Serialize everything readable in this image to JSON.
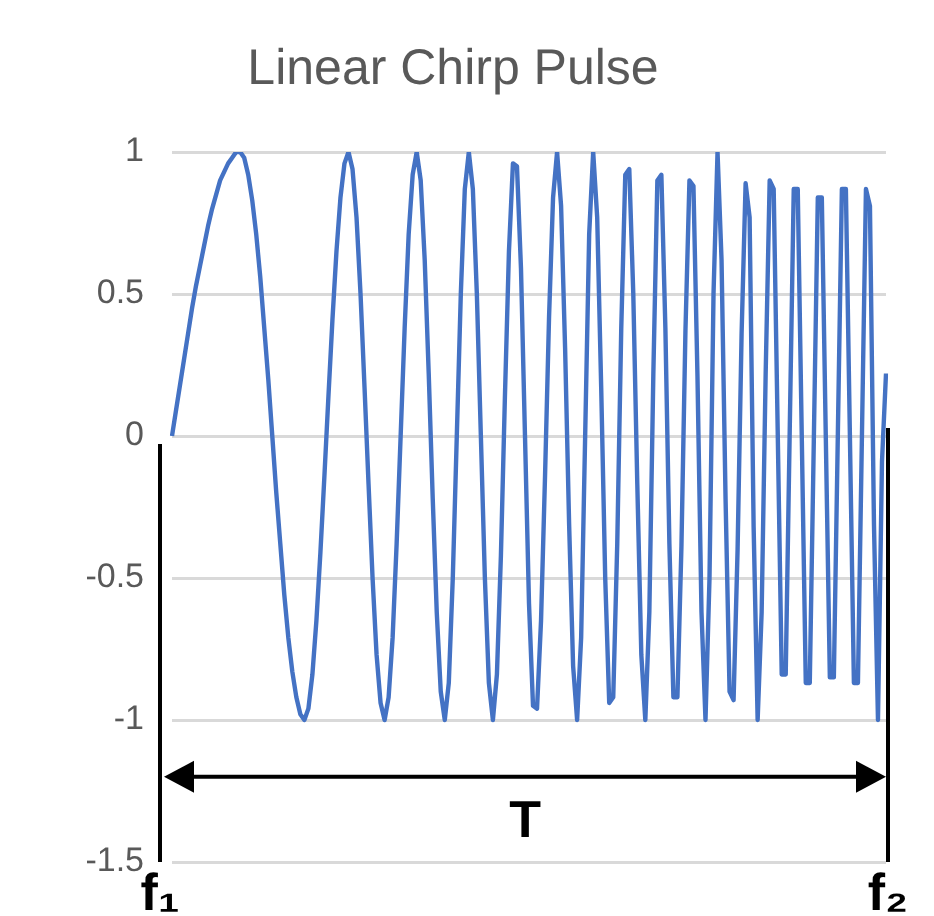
{
  "chart_data": {
    "type": "line",
    "title": "Linear Chirp Pulse",
    "tick_labels": "y",
    "grid": "y",
    "legend": false,
    "marker": "none",
    "line_style": "solid",
    "ylim": [
      -1.5,
      1
    ],
    "yticks": [
      -1.5,
      -1,
      -0.5,
      0,
      0.5,
      1
    ],
    "annotations": [
      "f₁",
      "f₂"
    ],
    "ref_lines": [
      {
        "axis": "y",
        "value": -1.2,
        "label": "T",
        "color": "#000000"
      }
    ],
    "categories": [
      null,
      null,
      null,
      null,
      null,
      null,
      null,
      null,
      null,
      null,
      null,
      null,
      null,
      null,
      null,
      null,
      null,
      null,
      null,
      null,
      null,
      null,
      null,
      null,
      null,
      null,
      null,
      null,
      null,
      null,
      null,
      null,
      null,
      null,
      null,
      null,
      null,
      null,
      null,
      null,
      null,
      null,
      null,
      null,
      null,
      null,
      null,
      null,
      null,
      null,
      null,
      null,
      null,
      null,
      null,
      null,
      null,
      null,
      null,
      null,
      null,
      null,
      null,
      null,
      null,
      null,
      null,
      null,
      null,
      null,
      null,
      null,
      null,
      null,
      null,
      null,
      null,
      null,
      null,
      null,
      null,
      null,
      null,
      null,
      null,
      null,
      null,
      null,
      null,
      null,
      null,
      null,
      null,
      null,
      null,
      null,
      null,
      null,
      null,
      null,
      null,
      null,
      null,
      null,
      null,
      null,
      null,
      null,
      null,
      null,
      null,
      null,
      null,
      null,
      null,
      null,
      null,
      null,
      null,
      null,
      null,
      null,
      null,
      null,
      null,
      null,
      null,
      null,
      null,
      null,
      null,
      null,
      null,
      null,
      null,
      null,
      null,
      null,
      null,
      null,
      null,
      null,
      null,
      null,
      null,
      null,
      null,
      null,
      null,
      null,
      null,
      null,
      null,
      null,
      null,
      null,
      null,
      null,
      null,
      null,
      null,
      null,
      null,
      null,
      null,
      null,
      null,
      null,
      null,
      null,
      null,
      null,
      null,
      null,
      null,
      null,
      null,
      null,
      null
    ],
    "series": [
      {
        "color": "#4472c4",
        "values": [
          0,
          0.09,
          0.18,
          0.27,
          0.36,
          0.45,
          0.53,
          0.6,
          0.67,
          0.74,
          0.8,
          0.85,
          0.9,
          0.93,
          0.96,
          0.98,
          1,
          1,
          0.98,
          0.92,
          0.83,
          0.71,
          0.56,
          0.38,
          0.2,
          0,
          -0.2,
          -0.38,
          -0.56,
          -0.71,
          -0.83,
          -0.92,
          -0.98,
          -1,
          -0.96,
          -0.84,
          -0.65,
          -0.41,
          -0.14,
          0.14,
          0.41,
          0.65,
          0.84,
          0.96,
          1,
          0.94,
          0.77,
          0.5,
          0.17,
          -0.17,
          -0.5,
          -0.77,
          -0.94,
          -1,
          -0.92,
          -0.71,
          -0.38,
          0,
          0.38,
          0.71,
          0.92,
          1,
          0.9,
          0.62,
          0.22,
          -0.22,
          -0.62,
          -0.9,
          -1,
          -0.87,
          -0.5,
          0,
          0.5,
          0.87,
          1,
          0.87,
          0.5,
          0,
          -0.5,
          -0.87,
          -1,
          -0.84,
          -0.42,
          0.14,
          0.65,
          0.96,
          0.95,
          0.59,
          0,
          -0.59,
          -0.95,
          -0.96,
          -0.65,
          -0.14,
          0.42,
          0.84,
          1,
          0.81,
          0.31,
          -0.31,
          -0.81,
          -1,
          -0.71,
          0,
          0.71,
          1,
          0.77,
          0.17,
          -0.5,
          -0.94,
          -0.92,
          -0.38,
          0.38,
          0.92,
          0.94,
          0.5,
          -0.17,
          -0.77,
          -1,
          -0.62,
          0.22,
          0.9,
          0.92,
          0.38,
          -0.38,
          -0.92,
          -0.92,
          -0.39,
          0.37,
          0.9,
          0.88,
          0.21,
          -0.62,
          -1,
          -0.5,
          0.5,
          1,
          0.62,
          -0.22,
          -0.9,
          -0.93,
          -0.4,
          0.36,
          0.89,
          0.77,
          -0.32,
          -1,
          -0.62,
          0.22,
          0.9,
          0.87,
          0.02,
          -0.84,
          -0.84,
          0.02,
          0.87,
          0.87,
          0,
          -0.87,
          -0.87,
          -0.02,
          0.84,
          0.84,
          -0.01,
          -0.85,
          -0.85,
          0.01,
          0.87,
          0.87,
          0,
          -0.87,
          -0.87,
          0,
          0.87,
          0.81,
          -0.31,
          -1,
          -0.09,
          0.22
        ]
      }
    ]
  }
}
